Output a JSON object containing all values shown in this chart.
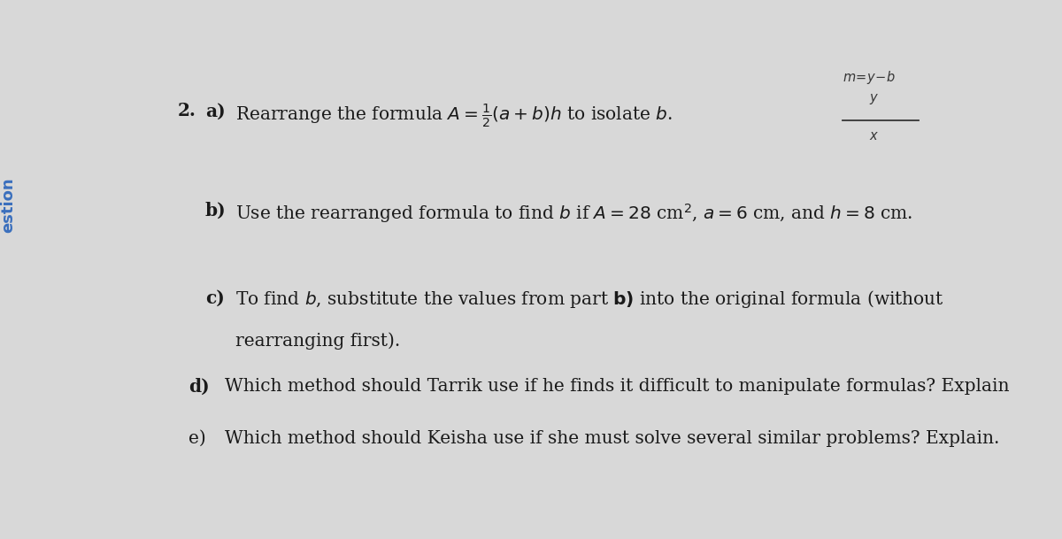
{
  "bg_color": "#d8d8d8",
  "text_color": "#1a1a1a",
  "fig_width": 12.0,
  "fig_height": 6.09,
  "question_number": "2.",
  "part_a_label": "a)",
  "part_a_text": "Rearrange the formula $A = \\frac{1}{2}(a + b)h$ to isolate $b$.",
  "part_b_label": "b)",
  "part_b_text": "Use the rearranged formula to find $b$ if $A = 28$ cm$^2$, $a = 6$ cm, and $h = 8$ cm.",
  "part_c_label": "c)",
  "part_c_text_line1": "To find $b$, substitute the values from part $\\mathbf{b)}$ into the original formula (without",
  "part_c_text_line2": "rearranging first).",
  "part_d_label": "d)",
  "part_d_text": "Which method should Tarrik use if he finds it difficult to manipulate formulas? Explain",
  "part_e_label": "e)",
  "part_e_text": "Which method should Keisha use if she must solve several similar problems? Explain.",
  "side_label": "estion",
  "side_label_color": "#3a6fbd",
  "font_family": "DejaVu Serif"
}
